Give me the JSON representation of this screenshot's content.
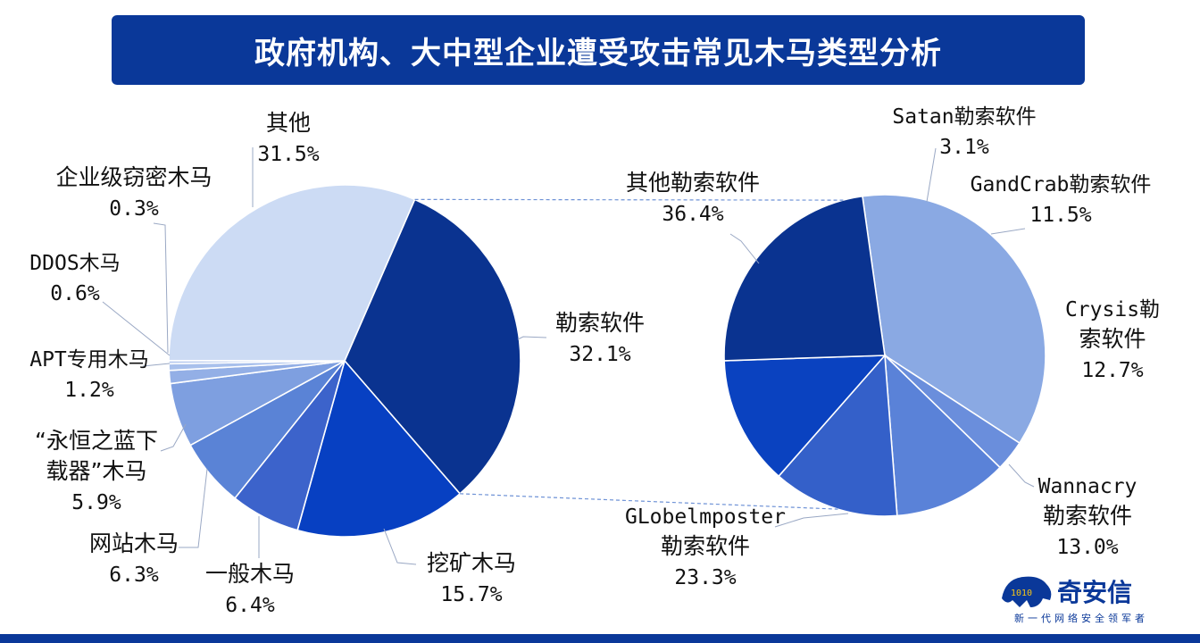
{
  "title": "政府机构、大中型企业遭受攻击常见木马类型分析",
  "chart_data": [
    {
      "type": "pie",
      "slices": [
        {
          "label": "勒索软件",
          "value": 32.1,
          "pct": "32.1%",
          "color": "#0A3390"
        },
        {
          "label": "挖矿木马",
          "value": 15.7,
          "pct": "15.7%",
          "color": "#0740C2"
        },
        {
          "label": "一般木马",
          "value": 6.4,
          "pct": "6.4%",
          "color": "#3C63CB"
        },
        {
          "label": "网站木马",
          "value": 6.3,
          "pct": "6.3%",
          "color": "#5A83D6"
        },
        {
          "label": "“永恒之蓝下载器”木马",
          "value": 5.9,
          "pct": "5.9%",
          "color": "#7E9FE0"
        },
        {
          "label": "APT专用木马",
          "value": 1.2,
          "pct": "1.2%",
          "color": "#93AFE6"
        },
        {
          "label": "DDOS木马",
          "value": 0.6,
          "pct": "0.6%",
          "color": "#A8C0EC"
        },
        {
          "label": "企业级窃密木马",
          "value": 0.3,
          "pct": "0.3%",
          "color": "#BCCEF0"
        },
        {
          "label": "其他",
          "value": 31.5,
          "pct": "31.5%",
          "color": "#CCDBF4"
        }
      ]
    },
    {
      "type": "pie",
      "slices": [
        {
          "label": "其他勒索软件",
          "value": 36.4,
          "pct": "36.4%",
          "color": "#8AA9E3"
        },
        {
          "label": "Satan勒索软件",
          "value": 3.1,
          "pct": "3.1%",
          "color": "#6A8EDC"
        },
        {
          "label": "GandCrab勒索软件",
          "value": 11.5,
          "pct": "11.5%",
          "color": "#5A82D8"
        },
        {
          "label": "Crysis勒索软件",
          "value": 12.7,
          "pct": "12.7%",
          "color": "#3460C9"
        },
        {
          "label": "Wannacry勒索软件",
          "value": 13.0,
          "pct": "13.0%",
          "color": "#0A42C0"
        },
        {
          "label": "GLobelmposter勒索软件",
          "value": 23.3,
          "pct": "23.3%",
          "color": "#0A3390"
        }
      ]
    }
  ],
  "labels": {
    "left": [
      {
        "lines": [
          "其他"
        ],
        "pct": "31.5%"
      },
      {
        "lines": [
          "企业级窃密木马"
        ],
        "pct": "0.3%"
      },
      {
        "lines": [
          "DDOS木马"
        ],
        "pct": "0.6%"
      },
      {
        "lines": [
          "APT专用木马"
        ],
        "pct": "1.2%"
      },
      {
        "lines": [
          "“永恒之蓝下",
          "载器”木马"
        ],
        "pct": "5.9%"
      },
      {
        "lines": [
          "网站木马"
        ],
        "pct": "6.3%"
      },
      {
        "lines": [
          "一般木马"
        ],
        "pct": "6.4%"
      },
      {
        "lines": [
          "挖矿木马"
        ],
        "pct": "15.7%"
      },
      {
        "lines": [
          "勒索软件"
        ],
        "pct": "32.1%"
      }
    ],
    "right": [
      {
        "lines": [
          "Satan勒索软件"
        ],
        "pct": "3.1%"
      },
      {
        "lines": [
          "其他勒索软件"
        ],
        "pct": "36.4%"
      },
      {
        "lines": [
          "GandCrab勒索软件"
        ],
        "pct": "11.5%"
      },
      {
        "lines": [
          "Crysis勒",
          "索软件"
        ],
        "pct": "12.7%"
      },
      {
        "lines": [
          "Wannacry",
          "勒索软件"
        ],
        "pct": "13.0%"
      },
      {
        "lines": [
          "GLobelmposter",
          "勒索软件"
        ],
        "pct": "23.3%"
      }
    ]
  },
  "logo": {
    "name": "奇安信",
    "slogan": "新一代网络安全领军者",
    "icon": "tiger-logo-icon"
  }
}
